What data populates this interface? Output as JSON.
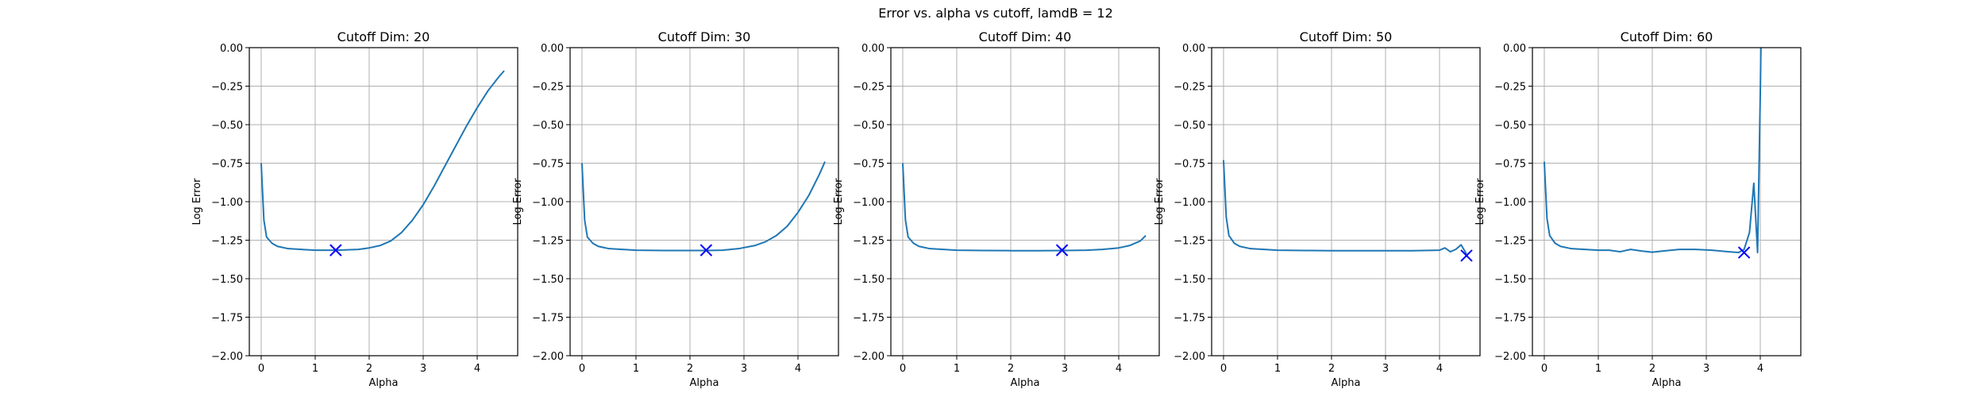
{
  "title": "Error vs. alpha vs cutoff, lamdB = 12",
  "colors": {
    "line": "#1f77b4",
    "marker": "#0000ff",
    "grid": "#b0b0b0",
    "axis": "#000000"
  },
  "chart_data": [
    {
      "type": "line",
      "title": "Cutoff Dim: 20",
      "xlabel": "Alpha",
      "ylabel": "Log Error",
      "xlim": [
        -0.22,
        4.75
      ],
      "ylim": [
        -2.0,
        0.0
      ],
      "xticks": [
        0,
        1,
        2,
        3,
        4
      ],
      "xtick_labels": [
        "0",
        "1",
        "2",
        "3",
        "4"
      ],
      "yticks": [
        0.0,
        -0.25,
        -0.5,
        -0.75,
        -1.0,
        -1.25,
        -1.5,
        -1.75,
        -2.0
      ],
      "ytick_labels": [
        "0.00",
        "−0.25",
        "−0.50",
        "−0.75",
        "−1.00",
        "−1.25",
        "−1.50",
        "−1.75",
        "−2.00"
      ],
      "grid": true,
      "series": [
        {
          "x": [
            0.0,
            0.05,
            0.1,
            0.2,
            0.3,
            0.5,
            0.75,
            1.0,
            1.4,
            1.8,
            2.0,
            2.2,
            2.4,
            2.6,
            2.8,
            3.0,
            3.2,
            3.4,
            3.6,
            3.8,
            4.0,
            4.2,
            4.4,
            4.5
          ],
          "y": [
            -0.75,
            -1.12,
            -1.23,
            -1.27,
            -1.29,
            -1.305,
            -1.31,
            -1.315,
            -1.315,
            -1.31,
            -1.3,
            -1.285,
            -1.255,
            -1.2,
            -1.12,
            -1.02,
            -0.9,
            -0.77,
            -0.64,
            -0.51,
            -0.39,
            -0.28,
            -0.19,
            -0.15
          ]
        }
      ],
      "marker": {
        "symbol": "x",
        "x": 1.38,
        "y": -1.315
      }
    },
    {
      "type": "line",
      "title": "Cutoff Dim: 30",
      "xlabel": "Alpha",
      "ylabel": "Log Error",
      "xlim": [
        -0.22,
        4.75
      ],
      "ylim": [
        -2.0,
        0.0
      ],
      "xticks": [
        0,
        1,
        2,
        3,
        4
      ],
      "xtick_labels": [
        "0",
        "1",
        "2",
        "3",
        "4"
      ],
      "yticks": [
        0.0,
        -0.25,
        -0.5,
        -0.75,
        -1.0,
        -1.25,
        -1.5,
        -1.75,
        -2.0
      ],
      "ytick_labels": [
        "0.00",
        "−0.25",
        "−0.50",
        "−0.75",
        "−1.00",
        "−1.25",
        "−1.50",
        "−1.75",
        "−2.00"
      ],
      "grid": true,
      "series": [
        {
          "x": [
            0.0,
            0.05,
            0.1,
            0.2,
            0.3,
            0.5,
            0.75,
            1.0,
            1.5,
            2.0,
            2.3,
            2.6,
            2.9,
            3.2,
            3.4,
            3.6,
            3.8,
            4.0,
            4.2,
            4.4,
            4.5
          ],
          "y": [
            -0.75,
            -1.12,
            -1.23,
            -1.27,
            -1.29,
            -1.305,
            -1.31,
            -1.315,
            -1.317,
            -1.317,
            -1.317,
            -1.315,
            -1.305,
            -1.285,
            -1.26,
            -1.22,
            -1.16,
            -1.07,
            -0.96,
            -0.82,
            -0.74
          ]
        }
      ],
      "marker": {
        "symbol": "x",
        "x": 2.3,
        "y": -1.315
      }
    },
    {
      "type": "line",
      "title": "Cutoff Dim: 40",
      "xlabel": "Alpha",
      "ylabel": "Log Error",
      "xlim": [
        -0.22,
        4.75
      ],
      "ylim": [
        -2.0,
        0.0
      ],
      "xticks": [
        0,
        1,
        2,
        3,
        4
      ],
      "xtick_labels": [
        "0",
        "1",
        "2",
        "3",
        "4"
      ],
      "yticks": [
        0.0,
        -0.25,
        -0.5,
        -0.75,
        -1.0,
        -1.25,
        -1.5,
        -1.75,
        -2.0
      ],
      "ytick_labels": [
        "0.00",
        "−0.25",
        "−0.50",
        "−0.75",
        "−1.00",
        "−1.25",
        "−1.50",
        "−1.75",
        "−2.00"
      ],
      "grid": true,
      "series": [
        {
          "x": [
            0.0,
            0.05,
            0.1,
            0.2,
            0.3,
            0.5,
            0.75,
            1.0,
            1.5,
            2.0,
            2.5,
            3.0,
            3.4,
            3.7,
            4.0,
            4.2,
            4.4,
            4.5
          ],
          "y": [
            -0.75,
            -1.12,
            -1.23,
            -1.27,
            -1.29,
            -1.305,
            -1.31,
            -1.315,
            -1.317,
            -1.318,
            -1.318,
            -1.317,
            -1.315,
            -1.31,
            -1.3,
            -1.285,
            -1.255,
            -1.22
          ]
        }
      ],
      "marker": {
        "symbol": "x",
        "x": 2.95,
        "y": -1.315
      }
    },
    {
      "type": "line",
      "title": "Cutoff Dim: 50",
      "xlabel": "Alpha",
      "ylabel": "Log Error",
      "xlim": [
        -0.22,
        4.75
      ],
      "ylim": [
        -2.0,
        0.0
      ],
      "xticks": [
        0,
        1,
        2,
        3,
        4
      ],
      "xtick_labels": [
        "0",
        "1",
        "2",
        "3",
        "4"
      ],
      "yticks": [
        0.0,
        -0.25,
        -0.5,
        -0.75,
        -1.0,
        -1.25,
        -1.5,
        -1.75,
        -2.0
      ],
      "ytick_labels": [
        "0.00",
        "−0.25",
        "−0.50",
        "−0.75",
        "−1.00",
        "−1.25",
        "−1.50",
        "−1.75",
        "−2.00"
      ],
      "grid": true,
      "series": [
        {
          "x": [
            0.0,
            0.05,
            0.1,
            0.2,
            0.3,
            0.5,
            0.75,
            1.0,
            1.5,
            2.0,
            2.5,
            3.0,
            3.5,
            4.0,
            4.1,
            4.2,
            4.3,
            4.4,
            4.45,
            4.5
          ],
          "y": [
            -0.73,
            -1.1,
            -1.22,
            -1.27,
            -1.29,
            -1.305,
            -1.31,
            -1.315,
            -1.317,
            -1.318,
            -1.318,
            -1.318,
            -1.318,
            -1.315,
            -1.3,
            -1.325,
            -1.31,
            -1.28,
            -1.31,
            -1.34
          ]
        }
      ],
      "marker": {
        "symbol": "x",
        "x": 4.5,
        "y": -1.35
      }
    },
    {
      "type": "line",
      "title": "Cutoff Dim: 60",
      "xlabel": "Alpha",
      "ylabel": "Log Error",
      "xlim": [
        -0.22,
        4.75
      ],
      "ylim": [
        -2.0,
        0.0
      ],
      "xticks": [
        0,
        1,
        2,
        3,
        4
      ],
      "xtick_labels": [
        "0",
        "1",
        "2",
        "3",
        "4"
      ],
      "yticks": [
        0.0,
        -0.25,
        -0.5,
        -0.75,
        -1.0,
        -1.25,
        -1.5,
        -1.75,
        -2.0
      ],
      "ytick_labels": [
        "0.00",
        "−0.25",
        "−0.50",
        "−0.75",
        "−1.00",
        "−1.25",
        "−1.50",
        "−1.75",
        "−2.00"
      ],
      "grid": true,
      "series": [
        {
          "x": [
            0.0,
            0.05,
            0.1,
            0.2,
            0.3,
            0.5,
            0.75,
            1.0,
            1.2,
            1.4,
            1.6,
            1.8,
            2.0,
            2.2,
            2.5,
            2.8,
            3.1,
            3.4,
            3.6,
            3.7,
            3.8,
            3.88,
            3.95,
            4.0,
            4.02
          ],
          "y": [
            -0.74,
            -1.11,
            -1.22,
            -1.27,
            -1.29,
            -1.305,
            -1.31,
            -1.315,
            -1.315,
            -1.325,
            -1.31,
            -1.32,
            -1.328,
            -1.32,
            -1.31,
            -1.31,
            -1.315,
            -1.325,
            -1.33,
            -1.31,
            -1.2,
            -0.88,
            -1.33,
            -0.3,
            0.2
          ]
        }
      ],
      "marker": {
        "symbol": "x",
        "x": 3.7,
        "y": -1.33
      }
    }
  ]
}
